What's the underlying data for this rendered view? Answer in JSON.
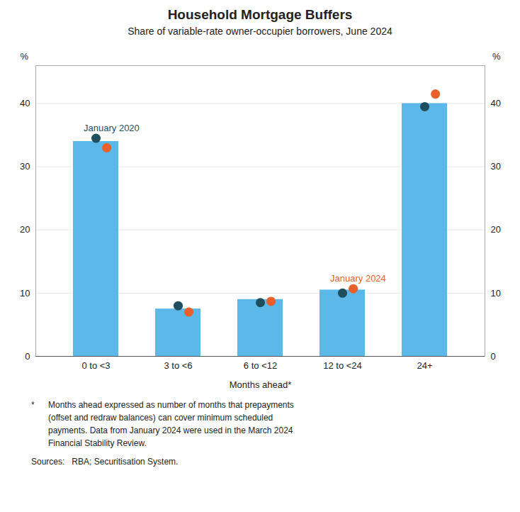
{
  "chart_data": {
    "type": "bar",
    "title": "Household Mortgage Buffers",
    "subtitle": "Share of variable-rate owner-occupier borrowers, June 2024",
    "categories": [
      "0 to <3",
      "3 to <6",
      "6 to <12",
      "12 to <24",
      "24+"
    ],
    "xlabel": "Months ahead*",
    "ylabel": "%",
    "y2label": "%",
    "series": [
      {
        "type": "bar",
        "color": "#5BB8E8",
        "values": [
          34.0,
          7.5,
          9.0,
          10.5,
          40.0
        ]
      },
      {
        "type": "scatter",
        "marker": "circle",
        "color": "#1F4E5F",
        "values": [
          34.5,
          8.0,
          8.5,
          10.0,
          39.5
        ],
        "annotation": {
          "text": "January 2020",
          "category": "0 to <3"
        }
      },
      {
        "type": "scatter",
        "marker": "circle",
        "color": "#E8602C",
        "values": [
          33.0,
          7.0,
          8.7,
          10.7,
          41.5
        ],
        "annotation": {
          "text": "January 2024",
          "category": "12 to <24"
        }
      }
    ],
    "ylim": [
      0,
      46
    ],
    "yticks": [
      0,
      10,
      20,
      30,
      40
    ],
    "grid": true,
    "footnotes": [
      {
        "marker": "*",
        "text": "Months ahead expressed as number of months that prepayments\n(offset and redraw balances) can cover minimum scheduled\npayments. Data from January 2024 were used in the March 2024\nFinancial Stability Review."
      },
      {
        "text": "Sources:   RBA; Securitisation System."
      }
    ]
  }
}
